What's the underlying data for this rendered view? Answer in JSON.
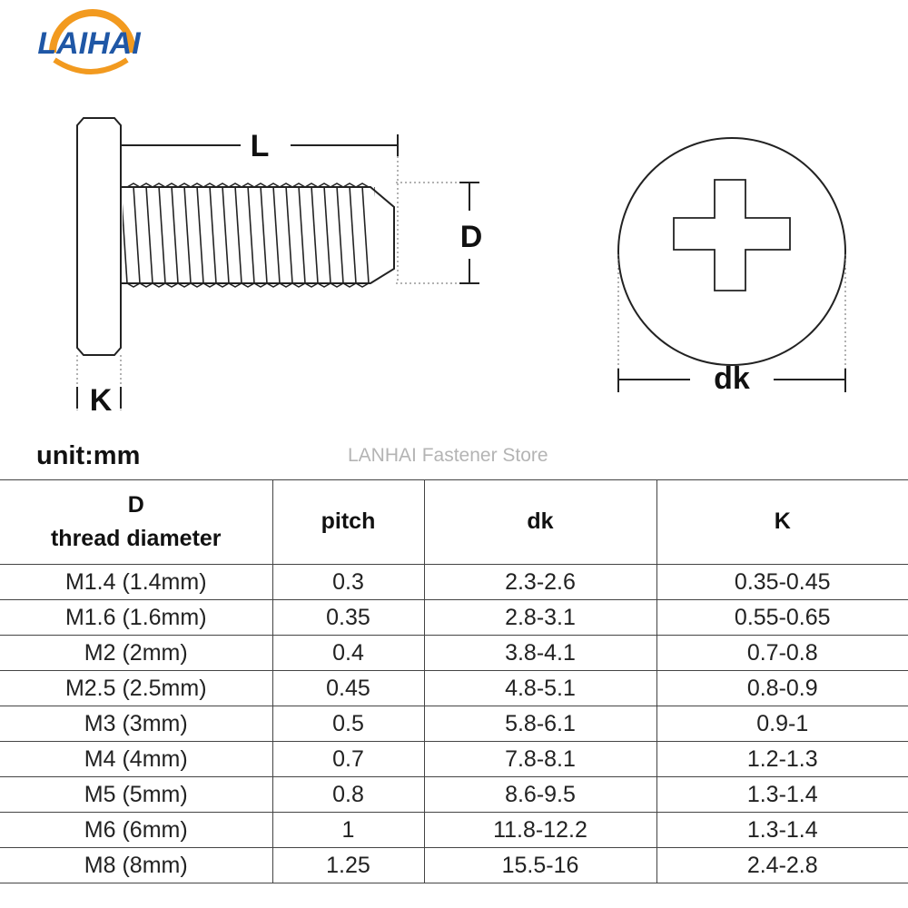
{
  "logo": {
    "text": "LAIHAI",
    "colors": {
      "blue": "#1f57a6",
      "orange": "#f29a1f"
    }
  },
  "drawing": {
    "label_L": "L",
    "label_D": "D",
    "label_K": "K",
    "label_dk": "dk"
  },
  "unit_label": "unit:mm",
  "watermark": "LANHAI Fastener Store",
  "table": {
    "headers": {
      "d_line1": "D",
      "d_line2": "thread diameter",
      "pitch": "pitch",
      "dk": "dk",
      "k": "K"
    },
    "rows": [
      {
        "d": "M1.4 (1.4mm)",
        "pitch": "0.3",
        "dk": "2.3-2.6",
        "k": "0.35-0.45"
      },
      {
        "d": "M1.6 (1.6mm)",
        "pitch": "0.35",
        "dk": "2.8-3.1",
        "k": "0.55-0.65"
      },
      {
        "d": "M2 (2mm)",
        "pitch": "0.4",
        "dk": "3.8-4.1",
        "k": "0.7-0.8"
      },
      {
        "d": "M2.5 (2.5mm)",
        "pitch": "0.45",
        "dk": "4.8-5.1",
        "k": "0.8-0.9"
      },
      {
        "d": "M3 (3mm)",
        "pitch": "0.5",
        "dk": "5.8-6.1",
        "k": "0.9-1"
      },
      {
        "d": "M4 (4mm)",
        "pitch": "0.7",
        "dk": "7.8-8.1",
        "k": "1.2-1.3"
      },
      {
        "d": "M5 (5mm)",
        "pitch": "0.8",
        "dk": "8.6-9.5",
        "k": "1.3-1.4"
      },
      {
        "d": "M6 (6mm)",
        "pitch": "1",
        "dk": "11.8-12.2",
        "k": "1.3-1.4"
      },
      {
        "d": "M8 (8mm)",
        "pitch": "1.25",
        "dk": "15.5-16",
        "k": "2.4-2.8"
      }
    ]
  }
}
